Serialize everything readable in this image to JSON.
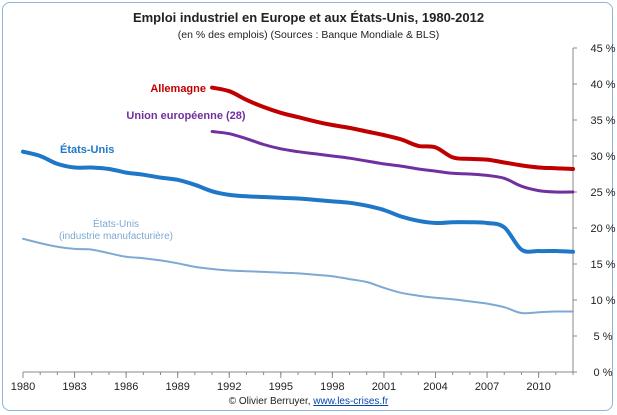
{
  "chart_data": {
    "type": "line",
    "title": "Emploi industriel en Europe et aux États-Unis, 1980-2012",
    "subtitle": "(en % des emplois) (Sources : Banque Mondiale & BLS)",
    "ylim": [
      0,
      45
    ],
    "xlim": [
      1980,
      2012
    ],
    "y_ticks": [
      "0 %",
      "5 %",
      "10 %",
      "15 %",
      "20 %",
      "25 %",
      "30 %",
      "35 %",
      "40 %",
      "45 %"
    ],
    "x_ticks": [
      "1980",
      "1983",
      "1986",
      "1989",
      "1992",
      "1995",
      "1998",
      "2001",
      "2004",
      "2007",
      "2010"
    ],
    "y_axis_side": "right",
    "grid": false,
    "series": [
      {
        "name": "Allemagne",
        "color": "#c00000",
        "x": [
          1991,
          1992,
          1993,
          1994,
          1995,
          1996,
          1997,
          1998,
          1999,
          2000,
          2001,
          2002,
          2003,
          2004,
          2005,
          2006,
          2007,
          2008,
          2009,
          2010,
          2011,
          2012
        ],
        "y": [
          39.5,
          39.0,
          37.8,
          36.8,
          36.0,
          35.4,
          34.8,
          34.3,
          33.9,
          33.4,
          32.9,
          32.3,
          31.4,
          31.2,
          29.8,
          29.6,
          29.5,
          29.1,
          28.7,
          28.4,
          28.3,
          28.2
        ]
      },
      {
        "name": "Union européenne (28)",
        "color": "#7030a0",
        "x": [
          1991,
          1992,
          1993,
          1994,
          1995,
          1996,
          1997,
          1998,
          1999,
          2000,
          2001,
          2002,
          2003,
          2004,
          2005,
          2006,
          2007,
          2008,
          2009,
          2010,
          2011,
          2012
        ],
        "y": [
          33.4,
          33.1,
          32.4,
          31.6,
          31.0,
          30.6,
          30.3,
          30.0,
          29.7,
          29.3,
          28.9,
          28.6,
          28.2,
          27.9,
          27.6,
          27.5,
          27.3,
          26.9,
          25.8,
          25.2,
          25.0,
          25.0
        ]
      },
      {
        "name": "États-Unis",
        "color": "#1f77c8",
        "x": [
          1980,
          1981,
          1982,
          1983,
          1984,
          1985,
          1986,
          1987,
          1988,
          1989,
          1990,
          1991,
          1992,
          1993,
          1994,
          1995,
          1996,
          1997,
          1998,
          1999,
          2000,
          2001,
          2002,
          2003,
          2004,
          2005,
          2006,
          2007,
          2008,
          2009,
          2010,
          2011,
          2012
        ],
        "y": [
          30.6,
          30.0,
          28.9,
          28.4,
          28.4,
          28.2,
          27.7,
          27.4,
          27.0,
          26.7,
          26.0,
          25.1,
          24.6,
          24.4,
          24.3,
          24.2,
          24.1,
          23.9,
          23.7,
          23.5,
          23.1,
          22.5,
          21.6,
          21.0,
          20.7,
          20.8,
          20.8,
          20.7,
          20.1,
          17.0,
          16.8,
          16.8,
          16.7
        ]
      },
      {
        "name": "États-Unis (industrie manufacturière)",
        "color": "#7ea9d4",
        "x": [
          1980,
          1981,
          1982,
          1983,
          1984,
          1985,
          1986,
          1987,
          1988,
          1989,
          1990,
          1991,
          1992,
          1993,
          1994,
          1995,
          1996,
          1997,
          1998,
          1999,
          2000,
          2001,
          2002,
          2003,
          2004,
          2005,
          2006,
          2007,
          2008,
          2009,
          2010,
          2011,
          2012
        ],
        "y": [
          18.5,
          17.9,
          17.4,
          17.1,
          17.0,
          16.5,
          16.0,
          15.8,
          15.5,
          15.1,
          14.6,
          14.3,
          14.1,
          14.0,
          13.9,
          13.8,
          13.7,
          13.5,
          13.3,
          12.9,
          12.5,
          11.7,
          11.0,
          10.6,
          10.3,
          10.1,
          9.8,
          9.5,
          9.0,
          8.2,
          8.3,
          8.4,
          8.4
        ]
      }
    ],
    "labels": {
      "allemagne": "Allemagne",
      "ue": "Union européenne (28)",
      "us": "États-Unis",
      "us_manuf_1": "États-Unis",
      "us_manuf_2": "(industrie manufacturière)"
    }
  },
  "credit": {
    "author": "© Olivier Berruyer, ",
    "link": "www.les-crises.fr"
  }
}
